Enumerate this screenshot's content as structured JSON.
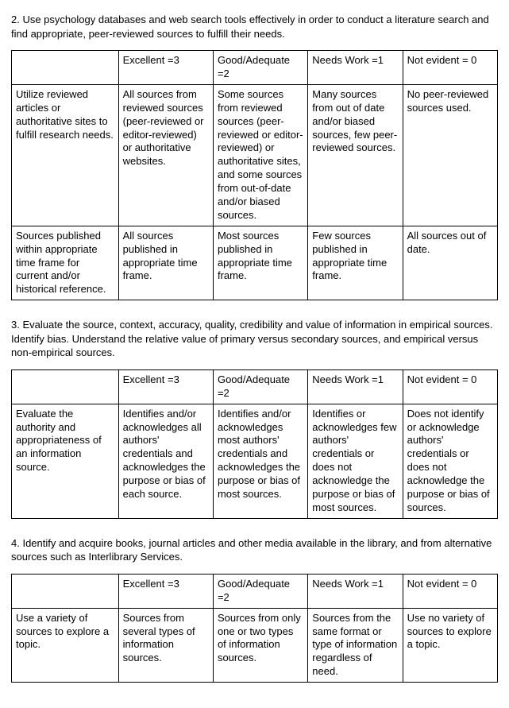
{
  "sections": [
    {
      "title": "2. Use psychology databases and web search tools effectively in order to conduct a literature search and find appropriate, peer-reviewed sources to fulfill their needs.",
      "headers": [
        "",
        "Excellent =3",
        "Good/Adequate =2",
        "Needs Work =1",
        "Not evident = 0"
      ],
      "rows": [
        {
          "criteria": "Utilize reviewed articles or authoritative sites to fulfill research needs.",
          "cells": [
            "All sources from reviewed sources (peer-reviewed or editor-reviewed) or authoritative websites.",
            "Some sources from reviewed sources (peer-reviewed or editor-reviewed) or authoritative sites, and some sources from out-of-date and/or biased sources.",
            "Many sources from out of date and/or biased sources, few peer-reviewed sources.",
            "No peer-reviewed sources used."
          ]
        },
        {
          "criteria": "Sources published within appropriate time frame for current and/or historical reference.",
          "cells": [
            "All sources published in appropriate time frame.",
            "Most sources published in appropriate time frame.",
            "Few sources published in appropriate time frame.",
            "All sources out of date."
          ]
        }
      ]
    },
    {
      "title": "3. Evaluate the source, context, accuracy, quality, credibility and value of information in empirical sources. Identify bias. Understand the relative value of primary versus secondary sources, and empirical versus non-empirical sources.",
      "headers": [
        "",
        "Excellent =3",
        "Good/Adequate =2",
        "Needs Work =1",
        "Not evident = 0"
      ],
      "rows": [
        {
          "criteria": "Evaluate the authority and appropriateness of an information source.",
          "cells": [
            "Identifies and/or acknowledges all authors' credentials and acknowledges the purpose or bias of each source.",
            "Identifies and/or acknowledges most authors' credentials and acknowledges the purpose or bias of most sources.",
            "Identifies or acknowledges few authors' credentials or does not acknowledge the purpose or bias of most sources.",
            "Does not identify or acknowledge authors' credentials or does not acknowledge the purpose or bias of sources."
          ]
        }
      ]
    },
    {
      "title": "4. Identify and acquire books, journal articles and other media available in the library, and from alternative sources such as Interlibrary Services.",
      "headers": [
        "",
        "Excellent =3",
        "Good/Adequate =2",
        "Needs Work =1",
        "Not evident = 0"
      ],
      "rows": [
        {
          "criteria": "Use a variety of sources to explore a topic.",
          "cells": [
            "Sources from several types of information sources.",
            "Sources from only one or two types of information sources.",
            "Sources from the same format or type of information regardless of need.",
            "Use no variety of sources to explore a topic."
          ]
        }
      ]
    }
  ]
}
